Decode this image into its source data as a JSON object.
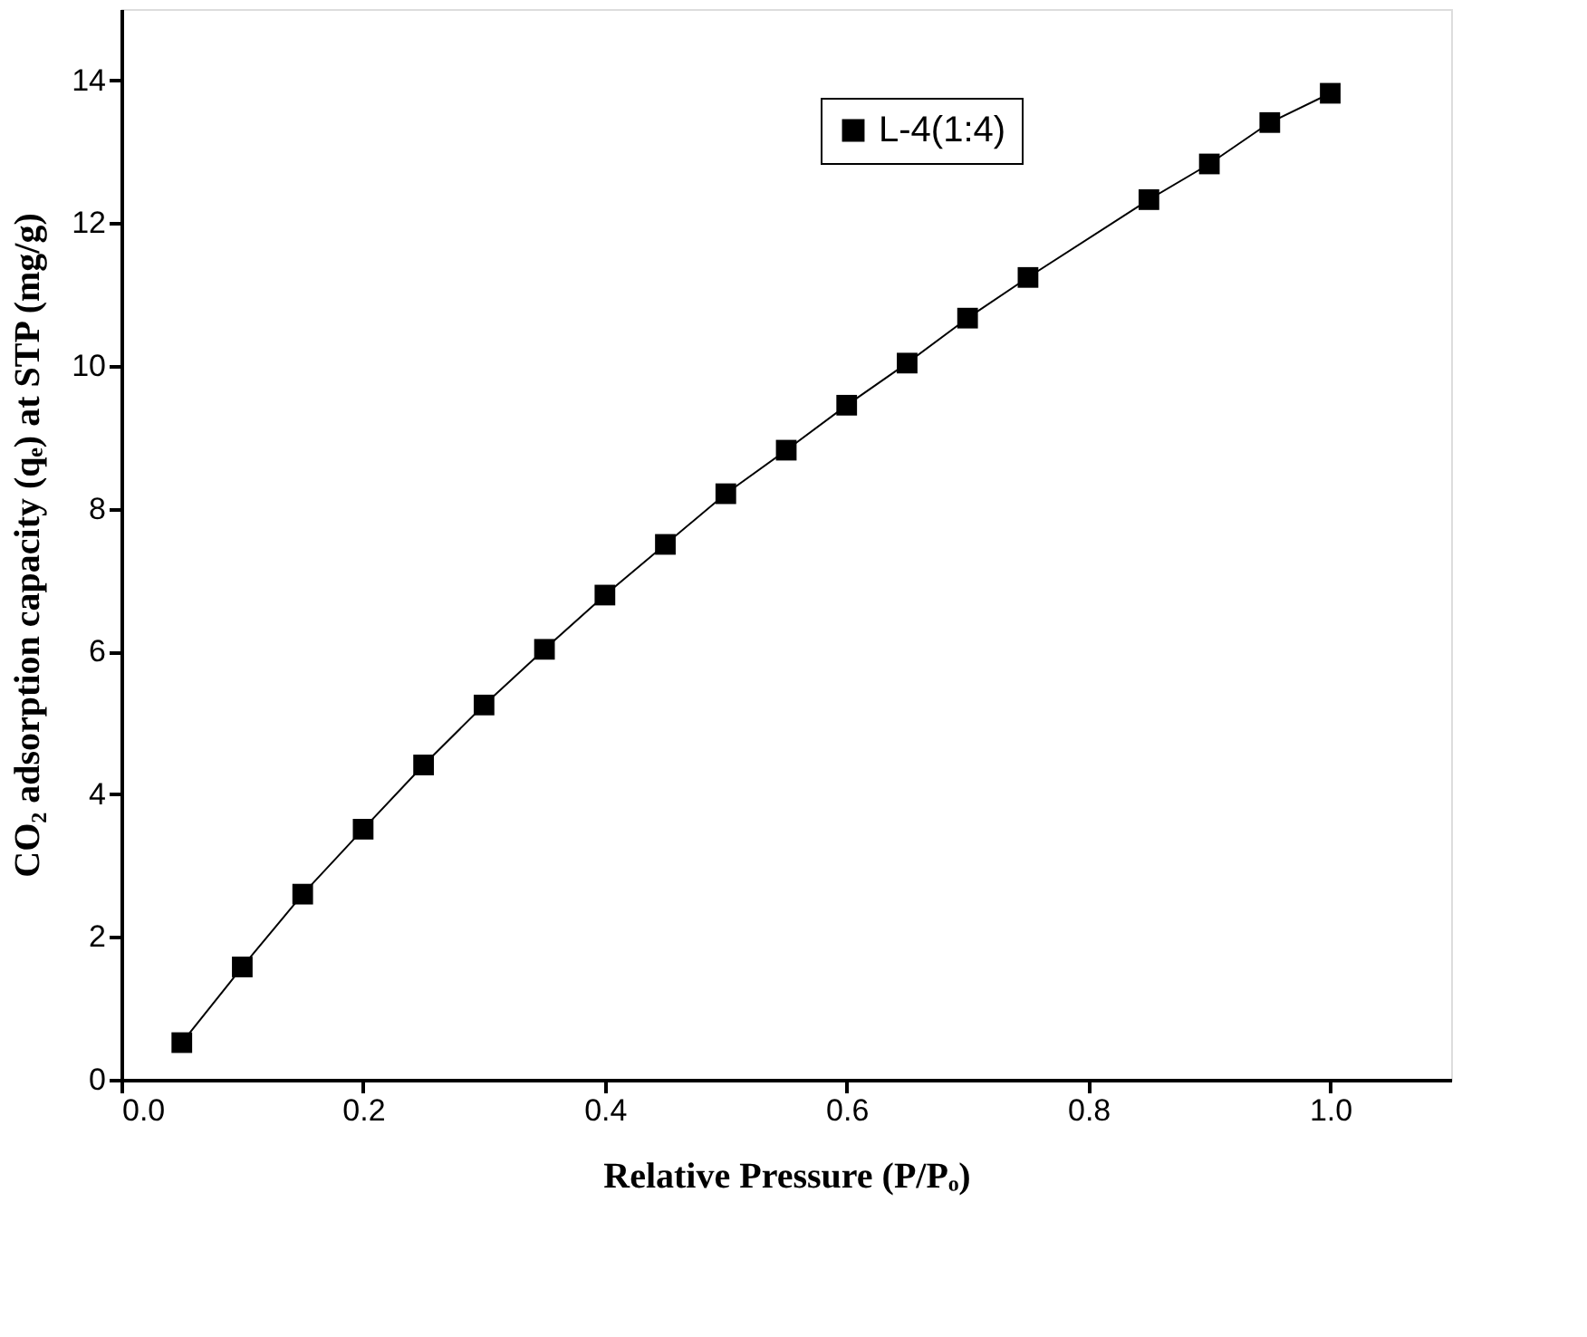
{
  "chart_data": {
    "type": "line",
    "xlabel": "Relative Pressure (P/Pₒ)",
    "ylabel": "CO₂ adsorption capacity (qₑ) at STP (mg/g)",
    "x": [
      0.05,
      0.1,
      0.15,
      0.2,
      0.25,
      0.3,
      0.35,
      0.4,
      0.45,
      0.5,
      0.55,
      0.6,
      0.65,
      0.7,
      0.75,
      0.85,
      0.9,
      0.95,
      1.0
    ],
    "series": [
      {
        "name": "L-4(1:4)",
        "color": "#000000",
        "values": [
          0.52,
          1.58,
          2.6,
          3.51,
          4.41,
          5.25,
          6.03,
          6.79,
          7.5,
          8.21,
          8.82,
          9.45,
          10.04,
          10.67,
          11.24,
          12.33,
          12.83,
          13.41,
          13.82
        ]
      }
    ],
    "xlim": [
      0,
      1.1
    ],
    "xticks": [
      {
        "value": 0,
        "label": "0.0"
      },
      {
        "value": 0.2,
        "label": "0.2"
      },
      {
        "value": 0.4,
        "label": "0.4"
      },
      {
        "value": 0.6,
        "label": "0.6"
      },
      {
        "value": 0.8,
        "label": "0.8"
      },
      {
        "value": 1.0,
        "label": "1.0"
      }
    ],
    "ylim": [
      0,
      15
    ],
    "yticks": [
      0,
      2,
      4,
      6,
      8,
      10,
      12,
      14
    ],
    "marker": "square",
    "line_style": "solid",
    "grid": false,
    "legend": "top right"
  }
}
